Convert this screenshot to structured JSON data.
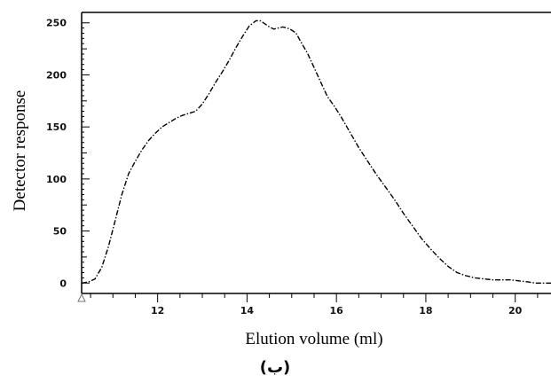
{
  "chart_data": {
    "type": "line",
    "title": "",
    "xlabel": "Elution volume (ml)",
    "ylabel": "Detector response",
    "caption": "(ب)",
    "xlim": [
      10.3,
      20.8
    ],
    "ylim": [
      -10,
      260
    ],
    "x_ticks": [
      12,
      14,
      16,
      18,
      20
    ],
    "x_tick_labels": [
      "12",
      "14",
      "16",
      "18",
      "20"
    ],
    "y_ticks": [
      0,
      50,
      100,
      150,
      200,
      250
    ],
    "y_tick_labels": [
      "0",
      "50",
      "100",
      "150",
      "200",
      "250"
    ],
    "grid": false,
    "legend": "none",
    "line_style": "dash-dot",
    "colors": {
      "line": "#000000",
      "axis": "#000000",
      "marker": "#777777"
    },
    "series": [
      {
        "x": [
          10.3,
          10.45,
          10.6,
          10.75,
          10.9,
          11.05,
          11.2,
          11.35,
          11.5,
          11.65,
          11.8,
          11.95,
          12.1,
          12.25,
          12.4,
          12.55,
          12.7,
          12.85,
          13.0,
          13.15,
          13.3,
          13.45,
          13.6,
          13.75,
          13.9,
          14.05,
          14.2,
          14.3,
          14.4,
          14.5,
          14.6,
          14.7,
          14.8,
          14.9,
          15.0,
          15.1,
          15.2,
          15.35,
          15.5,
          15.65,
          15.8,
          15.95,
          16.1,
          16.3,
          16.5,
          16.7,
          16.9,
          17.1,
          17.3,
          17.5,
          17.7,
          17.9,
          18.1,
          18.3,
          18.5,
          18.7,
          18.9,
          19.1,
          19.3,
          19.5,
          19.7,
          19.9,
          20.1,
          20.3,
          20.45,
          20.6,
          20.75,
          20.8
        ],
        "values": [
          0,
          1,
          4,
          15,
          35,
          60,
          85,
          105,
          117,
          128,
          137,
          144,
          150,
          154,
          158,
          161,
          163,
          165,
          172,
          182,
          193,
          203,
          214,
          226,
          237,
          247,
          252,
          252,
          249,
          246,
          244,
          245,
          246,
          245,
          243,
          240,
          232,
          221,
          207,
          193,
          179,
          170,
          160,
          145,
          130,
          117,
          104,
          92,
          80,
          67,
          55,
          43,
          33,
          24,
          16,
          10,
          7,
          5,
          4,
          3,
          3,
          3,
          2,
          1,
          0,
          0,
          0,
          0
        ]
      }
    ]
  }
}
